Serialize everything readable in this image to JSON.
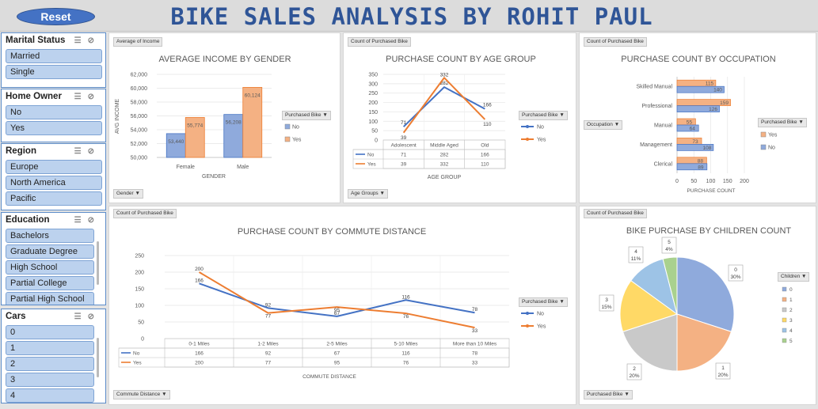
{
  "header": {
    "reset_label": "Reset",
    "title": "BIKE SALES ANALYSIS BY ROHIT PAUL"
  },
  "slicers": {
    "marital": {
      "title": "Marital Status",
      "items": [
        "Married",
        "Single"
      ]
    },
    "home": {
      "title": "Home Owner",
      "items": [
        "No",
        "Yes"
      ]
    },
    "region": {
      "title": "Region",
      "items": [
        "Europe",
        "North America",
        "Pacific"
      ]
    },
    "education": {
      "title": "Education",
      "items": [
        "Bachelors",
        "Graduate Degree",
        "High School",
        "Partial College",
        "Partial High School"
      ]
    },
    "cars": {
      "title": "Cars",
      "items": [
        "0",
        "1",
        "2",
        "3",
        "4"
      ]
    }
  },
  "colors": {
    "no": "#4472c4",
    "yes": "#ed7d31",
    "no_bar": "#8faadc",
    "yes_bar": "#f4b183",
    "title": "#2f5597"
  },
  "panels": {
    "income": {
      "field": "Average of Income",
      "filter": "Gender",
      "legend_title": "Purchased Bike"
    },
    "age": {
      "field": "Count of Purchased Bike",
      "filter": "Age Groups",
      "legend_title": "Purchased Bike"
    },
    "occupation": {
      "field": "Count of Purchased Bike",
      "filter": "Occupation",
      "legend_title": "Purchased Bike"
    },
    "commute": {
      "field": "Count of Purchased Bike",
      "filter": "Commute Distance",
      "legend_title": "Purchased Bike"
    },
    "children": {
      "field": "Count of Purchased Bike",
      "filter": "Purchased Bike",
      "legend_title": "Children"
    }
  },
  "chart_data": [
    {
      "id": "income",
      "type": "bar",
      "title": "AVERAGE INCOME BY GENDER",
      "xlabel": "GENDER",
      "ylabel": "AVG INCOME",
      "categories": [
        "Female",
        "Male"
      ],
      "ylim": [
        50000,
        62000
      ],
      "yticks": [
        "50,000",
        "52,000",
        "54,000",
        "56,000",
        "58,000",
        "60,000",
        "62,000"
      ],
      "series": [
        {
          "name": "No",
          "values": [
            53440,
            56208
          ],
          "labels": [
            "53,440",
            "56,208"
          ]
        },
        {
          "name": "Yes",
          "values": [
            55774,
            60124
          ],
          "labels": [
            "55,774",
            "60,124"
          ]
        }
      ]
    },
    {
      "id": "age",
      "type": "line",
      "title": "PURCHASE COUNT BY AGE GROUP",
      "xlabel": "AGE GROUP",
      "categories": [
        "Adolescent",
        "Middle Aged",
        "Old"
      ],
      "ylim": [
        0,
        350
      ],
      "yticks": [
        "0",
        "50",
        "100",
        "150",
        "200",
        "250",
        "300",
        "350"
      ],
      "series": [
        {
          "name": "No",
          "values": [
            71,
            282,
            166
          ]
        },
        {
          "name": "Yes",
          "values": [
            39,
            332,
            110
          ]
        }
      ]
    },
    {
      "id": "occupation",
      "type": "bar",
      "title": "PURCHASE COUNT BY OCCUPATION",
      "xlabel": "PURCHASE COUNT",
      "categories": [
        "Skilled Manual",
        "Professional",
        "Manual",
        "Management",
        "Clerical"
      ],
      "xlim": [
        0,
        200
      ],
      "xticks": [
        "0",
        "50",
        "100",
        "150",
        "200"
      ],
      "series": [
        {
          "name": "Yes",
          "values": [
            115,
            159,
            55,
            73,
            88
          ]
        },
        {
          "name": "No",
          "values": [
            140,
            126,
            64,
            108,
            89
          ]
        }
      ]
    },
    {
      "id": "commute",
      "type": "line",
      "title": "PURCHASE COUNT BY COMMUTE DISTANCE",
      "xlabel": "COMMUTE DISTANCE",
      "categories": [
        "0-1 Miles",
        "1-2 Miles",
        "2-5 Miles",
        "5-10 Miles",
        "More than 10 Miles"
      ],
      "ylim": [
        0,
        250
      ],
      "yticks": [
        "0",
        "50",
        "100",
        "150",
        "200",
        "250"
      ],
      "series": [
        {
          "name": "No",
          "values": [
            166,
            92,
            67,
            116,
            78
          ]
        },
        {
          "name": "Yes",
          "values": [
            200,
            77,
            95,
            76,
            33
          ]
        }
      ]
    },
    {
      "id": "children",
      "type": "pie",
      "title": "BIKE PURCHASE BY CHILDREN COUNT",
      "categories": [
        "0",
        "1",
        "2",
        "3",
        "4",
        "5"
      ],
      "values": [
        30,
        20,
        20,
        15,
        11,
        4
      ],
      "labels": [
        "30%",
        "20%",
        "20%",
        "15%",
        "11%",
        "4%"
      ],
      "colors": [
        "#8faadc",
        "#f4b183",
        "#c9c9c9",
        "#ffd966",
        "#9dc3e6",
        "#a9d18e"
      ]
    }
  ]
}
